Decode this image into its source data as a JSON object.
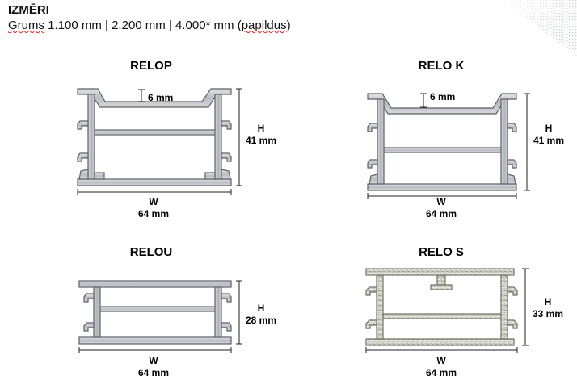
{
  "header": {
    "title": "IZMĒRI",
    "subtitle_prefix": "Grums",
    "subtitle_rest": " 1.100 mm | 2.200 mm | 4.000* mm (",
    "subtitle_word": "papildus",
    "subtitle_end": ")"
  },
  "profiles": [
    {
      "name": "RELOP",
      "h_letter": "H",
      "h_value": "41 mm",
      "w_letter": "W",
      "w_value": "64 mm",
      "depth": "6 mm"
    },
    {
      "name": "RELO K",
      "h_letter": "H",
      "h_value": "41 mm",
      "w_letter": "W",
      "w_value": "64 mm",
      "depth": "6 mm"
    },
    {
      "name": "RELOU",
      "h_letter": "H",
      "h_value": "28 mm",
      "w_letter": "W",
      "w_value": "64 mm"
    },
    {
      "name": "RELO S",
      "h_letter": "H",
      "h_value": "33 mm",
      "w_letter": "W",
      "w_value": "64 mm"
    }
  ],
  "colors": {
    "metal": "#c9ccd0",
    "metal_edge": "#5c6066",
    "metal_dark": "#8c9096",
    "textured": "#c8cabf"
  }
}
